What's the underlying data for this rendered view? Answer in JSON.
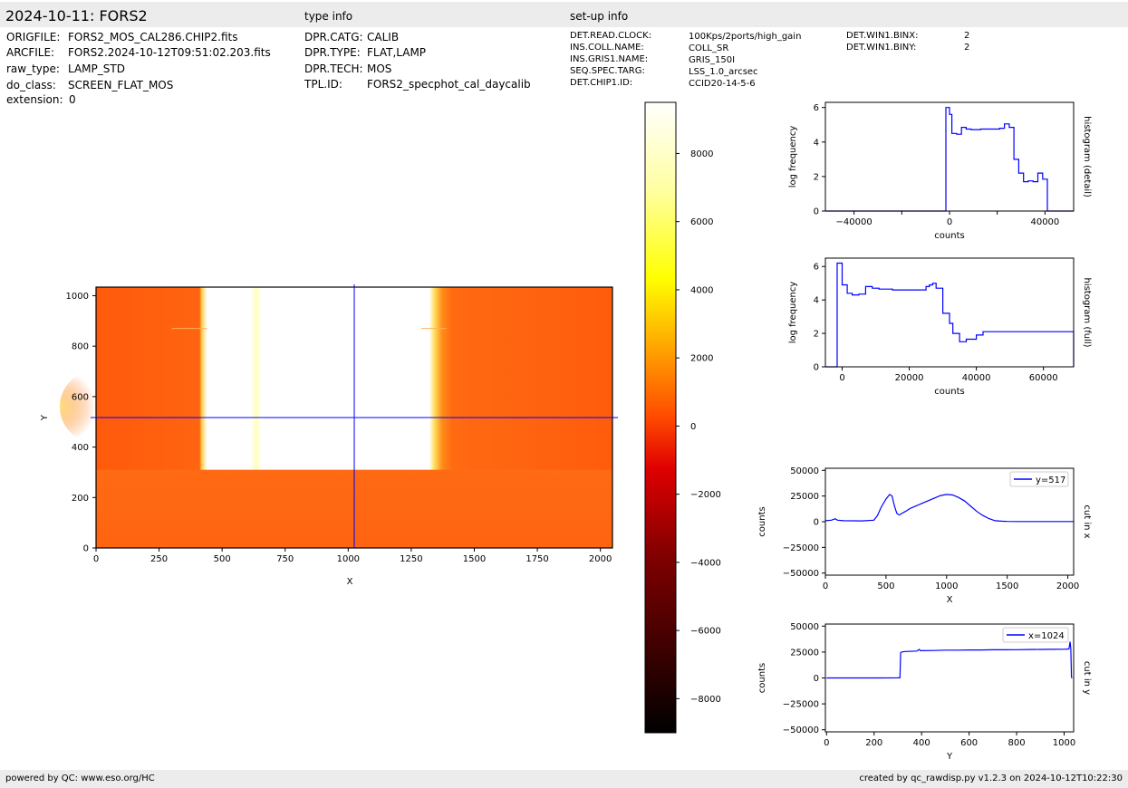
{
  "header": {
    "title": "2024-10-11: FORS2",
    "type_info": "type info",
    "setup_info": "set-up info"
  },
  "file_info": [
    {
      "key": "ORIGFILE:",
      "value": "FORS2_MOS_CAL286.CHIP2.fits"
    },
    {
      "key": "ARCFILE:",
      "value": "FORS2.2024-10-12T09:51:02.203.fits"
    },
    {
      "key": "raw_type:",
      "value": "LAMP_STD"
    },
    {
      "key": "do_class:",
      "value": "SCREEN_FLAT_MOS"
    },
    {
      "key": "extension:",
      "value": "0"
    }
  ],
  "type_info": [
    {
      "key": "DPR.CATG:",
      "value": "CALIB"
    },
    {
      "key": "DPR.TYPE:",
      "value": "FLAT,LAMP"
    },
    {
      "key": "DPR.TECH:",
      "value": "MOS"
    },
    {
      "key": "TPL.ID:",
      "value": "FORS2_specphot_cal_daycalib"
    }
  ],
  "setup_info": [
    {
      "key": "DET.READ.CLOCK:",
      "value": "100Kps/2ports/high_gain"
    },
    {
      "key": "INS.COLL.NAME:",
      "value": "COLL_SR"
    },
    {
      "key": "INS.GRIS1.NAME:",
      "value": "GRIS_150I"
    },
    {
      "key": "SEQ.SPEC.TARG:",
      "value": "LSS_1.0_arcsec"
    },
    {
      "key": "DET.CHIP1.ID:",
      "value": "CCID20-14-5-6"
    }
  ],
  "setup_info2": [
    {
      "key": "DET.WIN1.BINX:",
      "value": "2"
    },
    {
      "key": "DET.WIN1.BINY:",
      "value": "2"
    }
  ],
  "footer": {
    "left": "powered by QC: www.eso.org/HC",
    "right": "created by qc_rawdisp.py v1.2.3 on 2024-10-12T10:22:30"
  },
  "colors": {
    "line": "#0000ff",
    "frame": "#000000",
    "bar": "#ececec"
  },
  "chart_data": [
    {
      "type": "heatmap",
      "xlabel": "X",
      "ylabel": "Y",
      "xlim": [
        0,
        2048
      ],
      "ylim": [
        0,
        1034
      ],
      "xticks": [
        0,
        250,
        500,
        750,
        1000,
        1250,
        1500,
        1750,
        2000
      ],
      "yticks": [
        0,
        200,
        400,
        600,
        800,
        1000
      ],
      "crosshair": {
        "x": 1024,
        "y": 517
      },
      "colorbar": {
        "range": [
          -9000,
          9500
        ],
        "ticks": [
          8000,
          6000,
          4000,
          2000,
          0,
          -2000,
          -4000,
          -6000,
          -8000
        ],
        "tick_labels": [
          "8000",
          "6000",
          "4000",
          "2000",
          "0",
          "−2000",
          "−4000",
          "−6000",
          "−8000"
        ]
      }
    },
    {
      "type": "line",
      "label_right": "histogram (detail)",
      "xlabel": "counts",
      "ylabel": "log frequency",
      "xlim": [
        -52000,
        52000
      ],
      "ylim": [
        0,
        6.3
      ],
      "xticks": [
        -40000,
        0,
        40000
      ],
      "xtick_labels": [
        "−40000",
        "0",
        "40000"
      ],
      "xminor": [
        -20000,
        20000
      ],
      "yticks": [
        0,
        2,
        4,
        6
      ],
      "step": true,
      "x": [
        -52000,
        -1500,
        -1500,
        0,
        1000,
        3000,
        5000,
        7000,
        9000,
        11000,
        13000,
        15000,
        17000,
        19000,
        21000,
        23000,
        25000,
        27000,
        29000,
        31000,
        33000,
        35000,
        37000,
        39000,
        41000,
        42000,
        52000
      ],
      "y": [
        0,
        0,
        6.0,
        5.6,
        4.5,
        4.45,
        4.85,
        4.75,
        4.72,
        4.72,
        4.75,
        4.75,
        4.75,
        4.75,
        4.8,
        5.05,
        4.85,
        3.0,
        2.2,
        1.7,
        1.75,
        1.7,
        2.2,
        1.85,
        0,
        0,
        0
      ]
    },
    {
      "type": "line",
      "label_right": "histogram (full)",
      "xlabel": "counts",
      "ylabel": "log frequency",
      "xlim": [
        -5000,
        69000
      ],
      "ylim": [
        0,
        6.5
      ],
      "xticks": [
        0,
        20000,
        40000,
        60000
      ],
      "yticks": [
        0,
        2,
        4,
        6
      ],
      "step": true,
      "x": [
        -5000,
        -1500,
        -1500,
        0,
        1500,
        3000,
        5000,
        7000,
        9000,
        11000,
        13000,
        15000,
        17000,
        19000,
        21000,
        23000,
        25000,
        26000,
        27000,
        28000,
        30000,
        32000,
        33000,
        35000,
        37000,
        38500,
        40000,
        42000,
        69000
      ],
      "y": [
        0,
        0,
        6.2,
        4.9,
        4.4,
        4.3,
        4.35,
        4.8,
        4.7,
        4.65,
        4.65,
        4.6,
        4.6,
        4.6,
        4.6,
        4.6,
        4.8,
        4.9,
        5.0,
        4.7,
        3.2,
        2.6,
        2.0,
        1.5,
        1.65,
        1.65,
        1.9,
        2.1,
        0
      ]
    },
    {
      "type": "line",
      "label_right": "cut in x",
      "xlabel": "X",
      "ylabel": "counts",
      "legend": "y=517",
      "xlim": [
        0,
        2048
      ],
      "ylim": [
        -52000,
        52000
      ],
      "xticks": [
        0,
        500,
        1000,
        1500,
        2000
      ],
      "yticks": [
        50000,
        25000,
        0,
        -25000,
        -50000
      ],
      "ytick_labels": [
        "50000",
        "25000",
        "0",
        "−25000",
        "−50000"
      ],
      "x": [
        0,
        50,
        80,
        100,
        150,
        300,
        400,
        430,
        460,
        500,
        530,
        550,
        570,
        590,
        610,
        630,
        660,
        700,
        800,
        900,
        950,
        1000,
        1050,
        1100,
        1150,
        1200,
        1250,
        1300,
        1350,
        1400,
        1450,
        1500,
        1600,
        2048
      ],
      "y": [
        1000,
        1500,
        2800,
        1500,
        1000,
        800,
        1500,
        6000,
        14000,
        22000,
        26500,
        25000,
        15000,
        8000,
        6500,
        8000,
        10000,
        13000,
        18000,
        23000,
        25500,
        26500,
        26000,
        23500,
        20000,
        15000,
        10000,
        6000,
        3000,
        1000,
        500,
        300,
        200,
        200
      ]
    },
    {
      "type": "line",
      "label_right": "cut in y",
      "xlabel": "Y",
      "ylabel": "counts",
      "legend": "x=1024",
      "xlim": [
        -5,
        1040
      ],
      "ylim": [
        -52000,
        52000
      ],
      "xticks": [
        0,
        200,
        400,
        600,
        800,
        1000
      ],
      "yticks": [
        50000,
        25000,
        0,
        -25000,
        -50000
      ],
      "ytick_labels": [
        "50000",
        "25000",
        "0",
        "−25000",
        "−50000"
      ],
      "x": [
        0,
        100,
        200,
        300,
        309,
        312,
        315,
        330,
        380,
        390,
        395,
        450,
        500,
        550,
        600,
        650,
        700,
        750,
        800,
        850,
        900,
        950,
        1000,
        1020,
        1025,
        1028,
        1031,
        1034
      ],
      "y": [
        0,
        0,
        0,
        100,
        200,
        24500,
        25000,
        25500,
        26000,
        27500,
        26300,
        26500,
        26800,
        26800,
        27000,
        27000,
        27200,
        27200,
        27300,
        27400,
        27500,
        27600,
        27700,
        28000,
        35000,
        28000,
        500,
        0
      ]
    }
  ]
}
